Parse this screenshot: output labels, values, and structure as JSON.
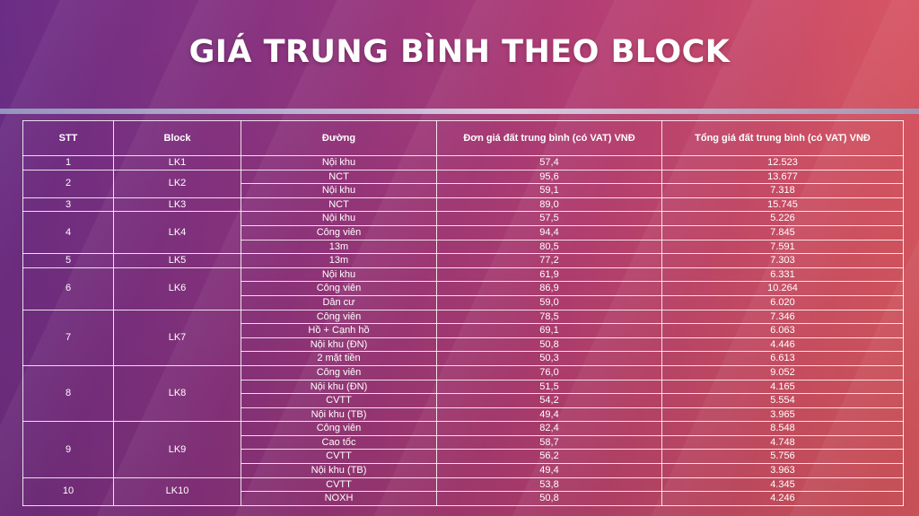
{
  "title": "GIÁ TRUNG BÌNH THEO BLOCK",
  "colors": {
    "background_left": "#6a2d86",
    "background_right": "#dd5a60",
    "text": "#ffffff",
    "divider": "#c9cfe4"
  },
  "table": {
    "headers": [
      "STT",
      "Block",
      "Đường",
      "Đơn giá đất trung bình (có VAT) VNĐ",
      "Tổng giá đất trung bình (có VAT) VNĐ"
    ],
    "groups": [
      {
        "stt": "1",
        "block": "LK1",
        "rows": [
          {
            "road": "Nội khu",
            "unit": "57,4",
            "total": "12.523"
          }
        ]
      },
      {
        "stt": "2",
        "block": "LK2",
        "rows": [
          {
            "road": "NCT",
            "unit": "95,6",
            "total": "13.677"
          },
          {
            "road": "Nội khu",
            "unit": "59,1",
            "total": "7.318"
          }
        ]
      },
      {
        "stt": "3",
        "block": "LK3",
        "rows": [
          {
            "road": "NCT",
            "unit": "89,0",
            "total": "15.745"
          }
        ]
      },
      {
        "stt": "4",
        "block": "LK4",
        "rows": [
          {
            "road": "Nội khu",
            "unit": "57,5",
            "total": "5.226"
          },
          {
            "road": "Công viên",
            "unit": "94,4",
            "total": "7.845"
          },
          {
            "road": "13m",
            "unit": "80,5",
            "total": "7.591"
          }
        ]
      },
      {
        "stt": "5",
        "block": "LK5",
        "rows": [
          {
            "road": "13m",
            "unit": "77,2",
            "total": "7.303"
          }
        ]
      },
      {
        "stt": "6",
        "block": "LK6",
        "rows": [
          {
            "road": "Nội khu",
            "unit": "61,9",
            "total": "6.331"
          },
          {
            "road": "Công viên",
            "unit": "86,9",
            "total": "10.264"
          },
          {
            "road": "Dân cư",
            "unit": "59,0",
            "total": "6.020"
          }
        ]
      },
      {
        "stt": "7",
        "block": "LK7",
        "rows": [
          {
            "road": "Công viên",
            "unit": "78,5",
            "total": "7.346"
          },
          {
            "road": "Hồ + Cạnh hồ",
            "unit": "69,1",
            "total": "6.063"
          },
          {
            "road": "Nội khu (ĐN)",
            "unit": "50,8",
            "total": "4.446"
          },
          {
            "road": "2 mặt tiền",
            "unit": "50,3",
            "total": "6.613"
          }
        ]
      },
      {
        "stt": "8",
        "block": "LK8",
        "rows": [
          {
            "road": "Công viên",
            "unit": "76,0",
            "total": "9.052"
          },
          {
            "road": "Nội khu (ĐN)",
            "unit": "51,5",
            "total": "4.165"
          },
          {
            "road": "CVTT",
            "unit": "54,2",
            "total": "5.554"
          },
          {
            "road": "Nội khu (TB)",
            "unit": "49,4",
            "total": "3.965"
          }
        ]
      },
      {
        "stt": "9",
        "block": "LK9",
        "rows": [
          {
            "road": "Công viên",
            "unit": "82,4",
            "total": "8.548"
          },
          {
            "road": "Cao tốc",
            "unit": "58,7",
            "total": "4.748"
          },
          {
            "road": "CVTT",
            "unit": "56,2",
            "total": "5.756"
          },
          {
            "road": "Nội khu (TB)",
            "unit": "49,4",
            "total": "3.963"
          }
        ]
      },
      {
        "stt": "10",
        "block": "LK10",
        "rows": [
          {
            "road": "CVTT",
            "unit": "53,8",
            "total": "4.345"
          },
          {
            "road": "NOXH",
            "unit": "50,8",
            "total": "4.246"
          }
        ]
      }
    ]
  }
}
